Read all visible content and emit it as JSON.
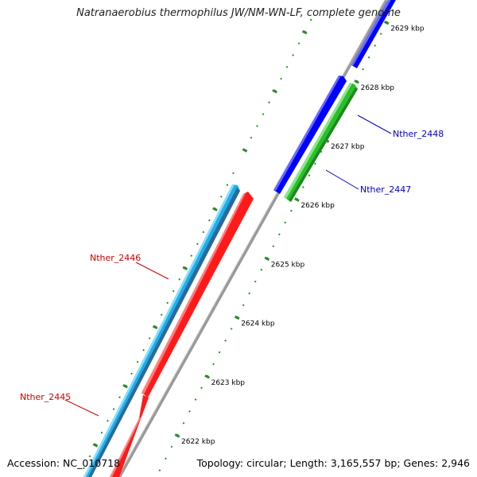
{
  "title": "Natranaerobius thermophilus JW/NM-WN-LF, complete genome",
  "footer": {
    "accession": "Accession: NC_010718",
    "summary": "Topology: circular; Length: 3,165,557 bp; Genes: 2,946"
  },
  "colors": {
    "backbone": "#8a8a8a",
    "tick": "#2f8a2f",
    "forward_cds": "#0000ff",
    "forward_cds_alt": "#22b022",
    "reverse_cds": "#ff1a1a",
    "reverse_cds_alt": "#1ab0ee",
    "label_forward": "#0000c8",
    "label_reverse": "#cc0000"
  },
  "ticks": [
    {
      "label": "2622 kbp",
      "pos": 2622
    },
    {
      "label": "2623 kbp",
      "pos": 2623
    },
    {
      "label": "2624 kbp",
      "pos": 2624
    },
    {
      "label": "2625 kbp",
      "pos": 2625
    },
    {
      "label": "2626 kbp",
      "pos": 2626
    },
    {
      "label": "2627 kbp",
      "pos": 2627
    },
    {
      "label": "2628 kbp",
      "pos": 2628
    },
    {
      "label": "2629 kbp",
      "pos": 2629
    }
  ],
  "features": [
    {
      "name": "Nther_2445",
      "strand": "reverse"
    },
    {
      "name": "Nther_2446",
      "strand": "reverse"
    },
    {
      "name": "Nther_2447",
      "strand": "forward"
    },
    {
      "name": "Nther_2448",
      "strand": "forward"
    }
  ]
}
